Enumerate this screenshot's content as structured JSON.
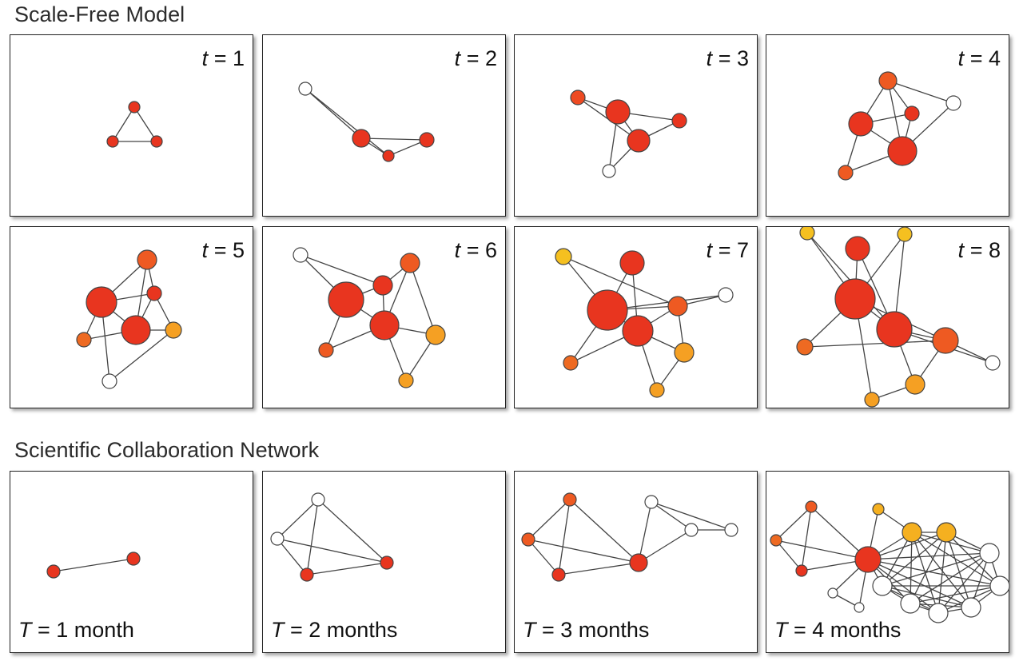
{
  "scale_free": {
    "title": "Scale-Free Model",
    "panels": [
      {
        "var": "t",
        "eq": "= 1",
        "nodes": [
          [
            155,
            90,
            7,
            "#e8351f"
          ],
          [
            128,
            133,
            7,
            "#e8351f"
          ],
          [
            183,
            133,
            7,
            "#e8351f"
          ]
        ],
        "edges": [
          [
            0,
            1
          ],
          [
            0,
            2
          ],
          [
            1,
            2
          ]
        ]
      },
      {
        "var": "t",
        "eq": "= 2",
        "nodes": [
          [
            53,
            67,
            8,
            "#ffffff"
          ],
          [
            123,
            129,
            11,
            "#e8351f"
          ],
          [
            157,
            151,
            7,
            "#e8351f"
          ],
          [
            205,
            131,
            9,
            "#e8351f"
          ]
        ],
        "edges": [
          [
            0,
            1
          ],
          [
            0,
            2
          ],
          [
            1,
            2
          ],
          [
            1,
            3
          ],
          [
            2,
            3
          ]
        ]
      },
      {
        "var": "t",
        "eq": "= 3",
        "nodes": [
          [
            79,
            78,
            9,
            "#ee4a22"
          ],
          [
            129,
            96,
            15,
            "#e8351f"
          ],
          [
            155,
            132,
            14,
            "#e8351f"
          ],
          [
            206,
            107,
            9,
            "#e8351f"
          ],
          [
            118,
            170,
            8,
            "#ffffff"
          ]
        ],
        "edges": [
          [
            0,
            1
          ],
          [
            0,
            2
          ],
          [
            1,
            2
          ],
          [
            1,
            3
          ],
          [
            2,
            3
          ],
          [
            1,
            4
          ],
          [
            2,
            4
          ]
        ]
      },
      {
        "var": "t",
        "eq": "= 4",
        "nodes": [
          [
            152,
            57,
            11,
            "#ee5a22"
          ],
          [
            118,
            111,
            15,
            "#e8351f"
          ],
          [
            182,
            98,
            9,
            "#e8351f"
          ],
          [
            234,
            85,
            9,
            "#ffffff"
          ],
          [
            170,
            145,
            18,
            "#e8351f"
          ],
          [
            99,
            172,
            9,
            "#ee5a22"
          ]
        ],
        "edges": [
          [
            0,
            1
          ],
          [
            0,
            2
          ],
          [
            0,
            4
          ],
          [
            1,
            2
          ],
          [
            1,
            4
          ],
          [
            2,
            4
          ],
          [
            0,
            3
          ],
          [
            3,
            4
          ],
          [
            1,
            5
          ],
          [
            4,
            5
          ]
        ]
      },
      {
        "var": "t",
        "eq": "= 5",
        "nodes": [
          [
            171,
            41,
            12,
            "#ee5a22"
          ],
          [
            114,
            94,
            19,
            "#e8351f"
          ],
          [
            180,
            83,
            9,
            "#e8351f"
          ],
          [
            157,
            129,
            18,
            "#e8351f"
          ],
          [
            204,
            129,
            10,
            "#f5a023"
          ],
          [
            92,
            141,
            9,
            "#ee6a22"
          ],
          [
            124,
            193,
            9,
            "#ffffff"
          ]
        ],
        "edges": [
          [
            0,
            1
          ],
          [
            0,
            2
          ],
          [
            0,
            3
          ],
          [
            1,
            2
          ],
          [
            1,
            3
          ],
          [
            2,
            3
          ],
          [
            2,
            4
          ],
          [
            3,
            4
          ],
          [
            1,
            5
          ],
          [
            3,
            5
          ],
          [
            1,
            6
          ],
          [
            4,
            6
          ]
        ]
      },
      {
        "var": "t",
        "eq": "= 6",
        "nodes": [
          [
            47,
            35,
            9,
            "#ffffff"
          ],
          [
            150,
            73,
            12,
            "#e8351f"
          ],
          [
            184,
            45,
            12,
            "#ee5a22"
          ],
          [
            104,
            91,
            22,
            "#e8351f"
          ],
          [
            152,
            123,
            18,
            "#e8351f"
          ],
          [
            216,
            135,
            12,
            "#f5a023"
          ],
          [
            79,
            154,
            9,
            "#ee5a22"
          ],
          [
            179,
            192,
            9,
            "#f5a023"
          ]
        ],
        "edges": [
          [
            0,
            1
          ],
          [
            0,
            3
          ],
          [
            1,
            2
          ],
          [
            1,
            3
          ],
          [
            1,
            4
          ],
          [
            2,
            4
          ],
          [
            3,
            4
          ],
          [
            2,
            5
          ],
          [
            4,
            5
          ],
          [
            3,
            6
          ],
          [
            4,
            6
          ],
          [
            4,
            7
          ],
          [
            5,
            7
          ]
        ]
      },
      {
        "var": "t",
        "eq": "= 7",
        "nodes": [
          [
            61,
            37,
            10,
            "#f5c020"
          ],
          [
            147,
            45,
            15,
            "#e8351f"
          ],
          [
            116,
            104,
            25,
            "#e8351f"
          ],
          [
            204,
            99,
            12,
            "#ee5a22"
          ],
          [
            264,
            85,
            9,
            "#ffffff"
          ],
          [
            154,
            130,
            19,
            "#e8351f"
          ],
          [
            212,
            157,
            12,
            "#f5a023"
          ],
          [
            70,
            170,
            9,
            "#ee6a22"
          ],
          [
            178,
            204,
            9,
            "#f5a023"
          ]
        ],
        "edges": [
          [
            0,
            2
          ],
          [
            0,
            3
          ],
          [
            1,
            2
          ],
          [
            1,
            5
          ],
          [
            2,
            3
          ],
          [
            2,
            5
          ],
          [
            3,
            5
          ],
          [
            3,
            4
          ],
          [
            2,
            4
          ],
          [
            3,
            6
          ],
          [
            5,
            6
          ],
          [
            2,
            7
          ],
          [
            5,
            7
          ],
          [
            5,
            8
          ],
          [
            6,
            8
          ]
        ]
      },
      {
        "var": "t",
        "eq": "= 8",
        "nodes": [
          [
            51,
            7,
            9,
            "#f5c020"
          ],
          [
            114,
            27,
            15,
            "#e8351f"
          ],
          [
            173,
            9,
            9,
            "#f5c020"
          ],
          [
            111,
            90,
            25,
            "#e8351f"
          ],
          [
            160,
            128,
            22,
            "#e8351f"
          ],
          [
            224,
            142,
            16,
            "#ee5a22"
          ],
          [
            48,
            150,
            10,
            "#ee6a22"
          ],
          [
            283,
            170,
            9,
            "#ffffff"
          ],
          [
            186,
            197,
            12,
            "#f5a023"
          ],
          [
            132,
            216,
            9,
            "#f5a023"
          ]
        ],
        "edges": [
          [
            0,
            3
          ],
          [
            1,
            3
          ],
          [
            2,
            3
          ],
          [
            1,
            4
          ],
          [
            0,
            4
          ],
          [
            2,
            4
          ],
          [
            3,
            4
          ],
          [
            3,
            5
          ],
          [
            4,
            5
          ],
          [
            3,
            6
          ],
          [
            4,
            7
          ],
          [
            5,
            7
          ],
          [
            4,
            8
          ],
          [
            5,
            8
          ],
          [
            3,
            9
          ],
          [
            8,
            9
          ],
          [
            6,
            5
          ]
        ]
      }
    ]
  },
  "collaboration": {
    "title": "Scientific Collaboration Network",
    "panels": [
      {
        "var": "T",
        "eq": "= 1 month",
        "nodes": [
          [
            54,
            125,
            8,
            "#e8351f"
          ],
          [
            154,
            109,
            8,
            "#e8351f"
          ]
        ],
        "edges": [
          [
            0,
            1
          ]
        ]
      },
      {
        "var": "T",
        "eq": "= 2 months",
        "nodes": [
          [
            69,
            35,
            8,
            "#ffffff"
          ],
          [
            18,
            84,
            8,
            "#ffffff"
          ],
          [
            55,
            129,
            8,
            "#e8351f"
          ],
          [
            155,
            114,
            8,
            "#e8351f"
          ]
        ],
        "edges": [
          [
            0,
            1
          ],
          [
            0,
            2
          ],
          [
            0,
            3
          ],
          [
            1,
            2
          ],
          [
            1,
            3
          ],
          [
            2,
            3
          ]
        ]
      },
      {
        "var": "T",
        "eq": "= 3 months",
        "nodes": [
          [
            69,
            35,
            8,
            "#ee5a22"
          ],
          [
            17,
            85,
            8,
            "#ee5a22"
          ],
          [
            55,
            129,
            8,
            "#e8351f"
          ],
          [
            155,
            114,
            11,
            "#e8351f"
          ],
          [
            171,
            38,
            8,
            "#ffffff"
          ],
          [
            221,
            73,
            8,
            "#ffffff"
          ],
          [
            271,
            73,
            8,
            "#ffffff"
          ]
        ],
        "edges": [
          [
            0,
            1
          ],
          [
            0,
            2
          ],
          [
            0,
            3
          ],
          [
            1,
            2
          ],
          [
            1,
            3
          ],
          [
            2,
            3
          ],
          [
            3,
            4
          ],
          [
            3,
            5
          ],
          [
            4,
            5
          ],
          [
            4,
            6
          ],
          [
            5,
            6
          ]
        ]
      },
      {
        "var": "T",
        "eq": "= 4 months",
        "nodes": [
          [
            56,
            44,
            7,
            "#ee5a22"
          ],
          [
            12,
            86,
            7,
            "#ee6a22"
          ],
          [
            44,
            124,
            7,
            "#e8351f"
          ],
          [
            127,
            110,
            16,
            "#e8351f"
          ],
          [
            140,
            47,
            7,
            "#f5b020"
          ],
          [
            182,
            76,
            12,
            "#f5b020"
          ],
          [
            225,
            76,
            12,
            "#f5b020"
          ],
          [
            279,
            102,
            12,
            "#ffffff"
          ],
          [
            292,
            143,
            12,
            "#ffffff"
          ],
          [
            256,
            170,
            12,
            "#ffffff"
          ],
          [
            215,
            177,
            12,
            "#ffffff"
          ],
          [
            180,
            165,
            12,
            "#ffffff"
          ],
          [
            145,
            143,
            12,
            "#ffffff"
          ],
          [
            83,
            152,
            6,
            "#ffffff"
          ],
          [
            116,
            170,
            6,
            "#ffffff"
          ]
        ],
        "edges": [
          [
            0,
            1
          ],
          [
            0,
            2
          ],
          [
            0,
            3
          ],
          [
            1,
            2
          ],
          [
            1,
            3
          ],
          [
            2,
            3
          ],
          [
            3,
            4
          ],
          [
            3,
            5
          ],
          [
            3,
            6
          ],
          [
            3,
            7
          ],
          [
            3,
            8
          ],
          [
            3,
            9
          ],
          [
            3,
            10
          ],
          [
            3,
            11
          ],
          [
            3,
            12
          ],
          [
            3,
            13
          ],
          [
            3,
            14
          ],
          [
            13,
            14
          ],
          [
            4,
            5
          ],
          [
            5,
            6
          ],
          [
            5,
            7
          ],
          [
            5,
            8
          ],
          [
            5,
            9
          ],
          [
            5,
            10
          ],
          [
            5,
            11
          ],
          [
            5,
            12
          ],
          [
            6,
            7
          ],
          [
            6,
            8
          ],
          [
            6,
            9
          ],
          [
            6,
            10
          ],
          [
            6,
            11
          ],
          [
            6,
            12
          ],
          [
            7,
            8
          ],
          [
            7,
            9
          ],
          [
            7,
            10
          ],
          [
            7,
            11
          ],
          [
            7,
            12
          ],
          [
            8,
            9
          ],
          [
            8,
            10
          ],
          [
            8,
            11
          ],
          [
            8,
            12
          ],
          [
            9,
            10
          ],
          [
            9,
            11
          ],
          [
            9,
            12
          ],
          [
            10,
            11
          ],
          [
            10,
            12
          ],
          [
            11,
            12
          ]
        ]
      }
    ]
  }
}
